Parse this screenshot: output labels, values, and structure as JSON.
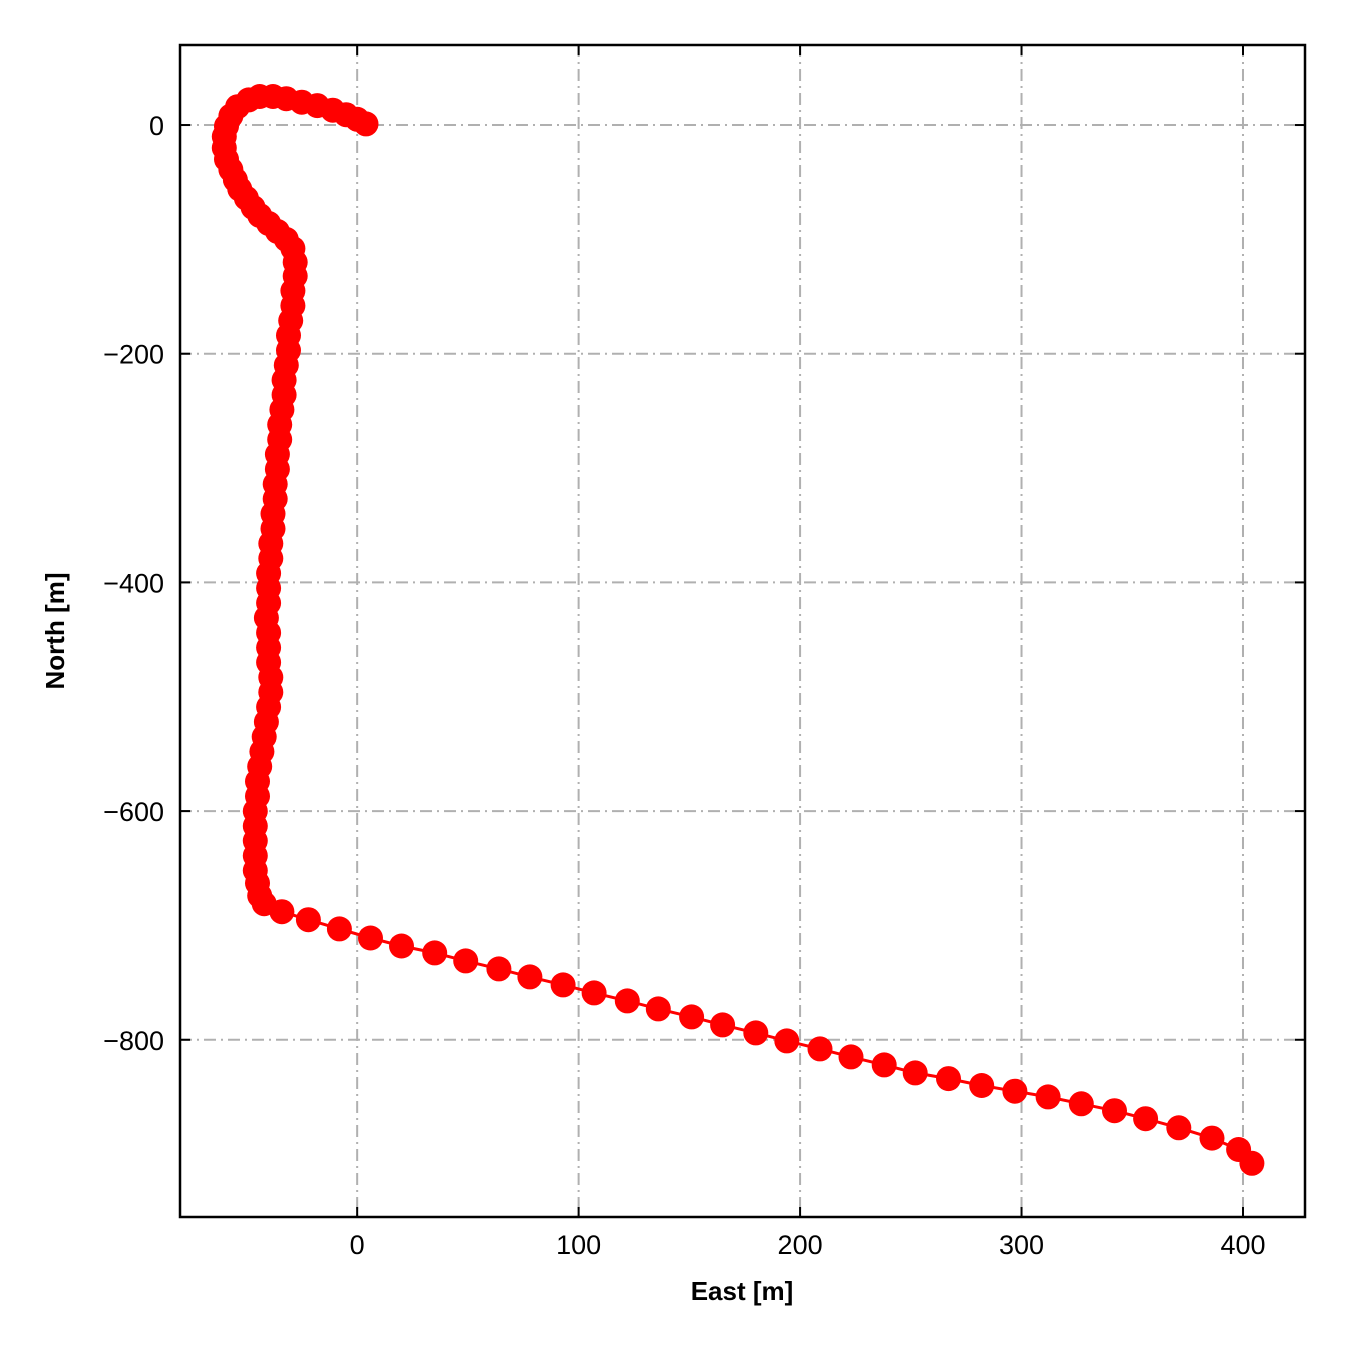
{
  "chart_data": {
    "type": "line",
    "title": "",
    "xlabel": "East [m]",
    "ylabel": "North [m]",
    "xlim": [
      -80,
      428
    ],
    "ylim": [
      -955,
      70
    ],
    "xticks": [
      0,
      100,
      200,
      300,
      400
    ],
    "yticks": [
      0,
      -200,
      -400,
      -600,
      -800
    ],
    "xtick_labels": [
      "0",
      "100",
      "200",
      "300",
      "400"
    ],
    "ytick_labels": [
      "0",
      "−200",
      "−400",
      "−600",
      "−800"
    ],
    "grid": true,
    "legend": "none",
    "colors": {
      "series": "#ff0000",
      "grid": "#b0b0b0",
      "frame": "#000000"
    },
    "series": [
      {
        "marker": "circle",
        "x": [
          4,
          0,
          -5,
          -11,
          -18,
          -25,
          -32,
          -38,
          -44,
          -49,
          -54,
          -57,
          -59,
          -60,
          -60,
          -59,
          -57,
          -55,
          -53,
          -50,
          -47,
          -44,
          -40,
          -36,
          -32,
          -29,
          -28,
          -28,
          -29,
          -29,
          -30,
          -31,
          -31,
          -32,
          -33,
          -33,
          -34,
          -35,
          -35,
          -36,
          -36,
          -37,
          -37,
          -38,
          -38,
          -39,
          -39,
          -40,
          -40,
          -40,
          -41,
          -40,
          -40,
          -40,
          -39,
          -39,
          -40,
          -41,
          -42,
          -43,
          -44,
          -45,
          -45,
          -46,
          -46,
          -46,
          -46,
          -46,
          -45,
          -44,
          -42,
          -34,
          -22,
          -8,
          6,
          20,
          35,
          49,
          64,
          78,
          93,
          107,
          122,
          136,
          151,
          165,
          180,
          194,
          209,
          223,
          238,
          252,
          267,
          282,
          297,
          312,
          327,
          342,
          356,
          371,
          386,
          398,
          404
        ],
        "y": [
          1,
          5,
          9,
          13,
          17,
          20,
          23,
          25,
          25,
          22,
          16,
          8,
          -1,
          -10,
          -20,
          -30,
          -39,
          -48,
          -56,
          -64,
          -72,
          -79,
          -86,
          -93,
          -100,
          -108,
          -120,
          -132,
          -145,
          -158,
          -171,
          -184,
          -197,
          -210,
          -223,
          -236,
          -249,
          -262,
          -275,
          -288,
          -301,
          -314,
          -327,
          -340,
          -353,
          -366,
          -379,
          -392,
          -405,
          -418,
          -431,
          -444,
          -457,
          -470,
          -483,
          -496,
          -509,
          -522,
          -535,
          -548,
          -561,
          -574,
          -587,
          -600,
          -613,
          -626,
          -639,
          -652,
          -663,
          -674,
          -681,
          -688,
          -695,
          -703,
          -711,
          -718,
          -724,
          -731,
          -738,
          -745,
          -752,
          -759,
          -766,
          -773,
          -780,
          -787,
          -794,
          -801,
          -808,
          -815,
          -822,
          -829,
          -834,
          -840,
          -845,
          -850,
          -856,
          -862,
          -869,
          -877,
          -886,
          -896,
          -908
        ]
      }
    ]
  }
}
